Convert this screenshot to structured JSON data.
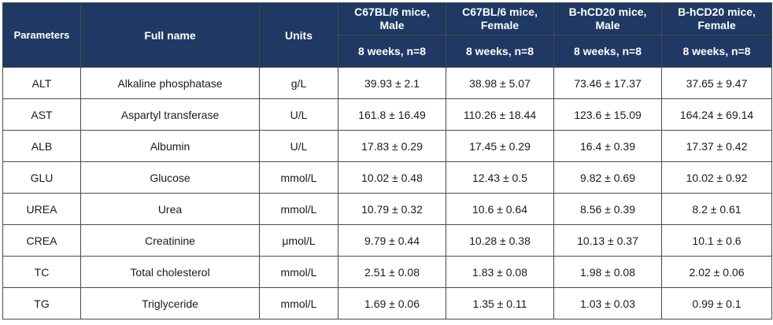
{
  "table": {
    "headers": {
      "parameters": "Parameters",
      "full_name": "Full name",
      "units": "Units",
      "groups": [
        {
          "line1": "C67BL/6 mice,",
          "line2": "Male",
          "sub": "8 weeks, n=8"
        },
        {
          "line1": "C67BL/6 mice,",
          "line2": "Female",
          "sub": "8 weeks, n=8"
        },
        {
          "line1": "B-hCD20 mice,",
          "line2": "Male",
          "sub": "8 weeks, n=8"
        },
        {
          "line1": "B-hCD20 mice,",
          "line2": "Female",
          "sub": "8 weeks, n=8"
        }
      ]
    },
    "rows": [
      {
        "param": "ALT",
        "name": "Alkaline phosphatase",
        "unit": "g/L",
        "v1": "39.93 ± 2.1",
        "v2": "38.98 ± 5.07",
        "v3": "73.46 ± 17.37",
        "v4": "37.65 ± 9.47"
      },
      {
        "param": "AST",
        "name": "Aspartyl transferase",
        "unit": "U/L",
        "v1": "161.8 ± 16.49",
        "v2": "110.26 ± 18.44",
        "v3": "123.6 ± 15.09",
        "v4": "164.24 ± 69.14"
      },
      {
        "param": "ALB",
        "name": "Albumin",
        "unit": "U/L",
        "v1": "17.83 ± 0.29",
        "v2": "17.45 ± 0.29",
        "v3": "16.4 ± 0.39",
        "v4": "17.37 ± 0.42"
      },
      {
        "param": "GLU",
        "name": "Glucose",
        "unit": "mmol/L",
        "v1": "10.02 ± 0.48",
        "v2": "12.43 ± 0.5",
        "v3": "9.82 ± 0.69",
        "v4": "10.02 ± 0.92"
      },
      {
        "param": "UREA",
        "name": "Urea",
        "unit": "mmol/L",
        "v1": "10.79 ± 0.32",
        "v2": "10.6 ± 0.64",
        "v3": "8.56 ± 0.39",
        "v4": "8.2 ± 0.61"
      },
      {
        "param": "CREA",
        "name": "Creatinine",
        "unit": "μmol/L",
        "v1": "9.79 ± 0.44",
        "v2": "10.28 ± 0.38",
        "v3": "10.13 ± 0.37",
        "v4": "10.1 ± 0.6"
      },
      {
        "param": "TC",
        "name": "Total cholesterol",
        "unit": "mmol/L",
        "v1": "2.51 ± 0.08",
        "v2": "1.83 ± 0.08",
        "v3": "1.98 ± 0.08",
        "v4": "2.02 ± 0.06"
      },
      {
        "param": "TG",
        "name": "Triglyceride",
        "unit": "mmol/L",
        "v1": "1.69 ± 0.06",
        "v2": "1.35 ± 0.11",
        "v3": "1.03 ± 0.03",
        "v4": "0.99 ± 0.1"
      }
    ]
  },
  "colors": {
    "header_bg": "#1f3864",
    "header_text": "#ffffff",
    "border": "#4a4a4a"
  }
}
